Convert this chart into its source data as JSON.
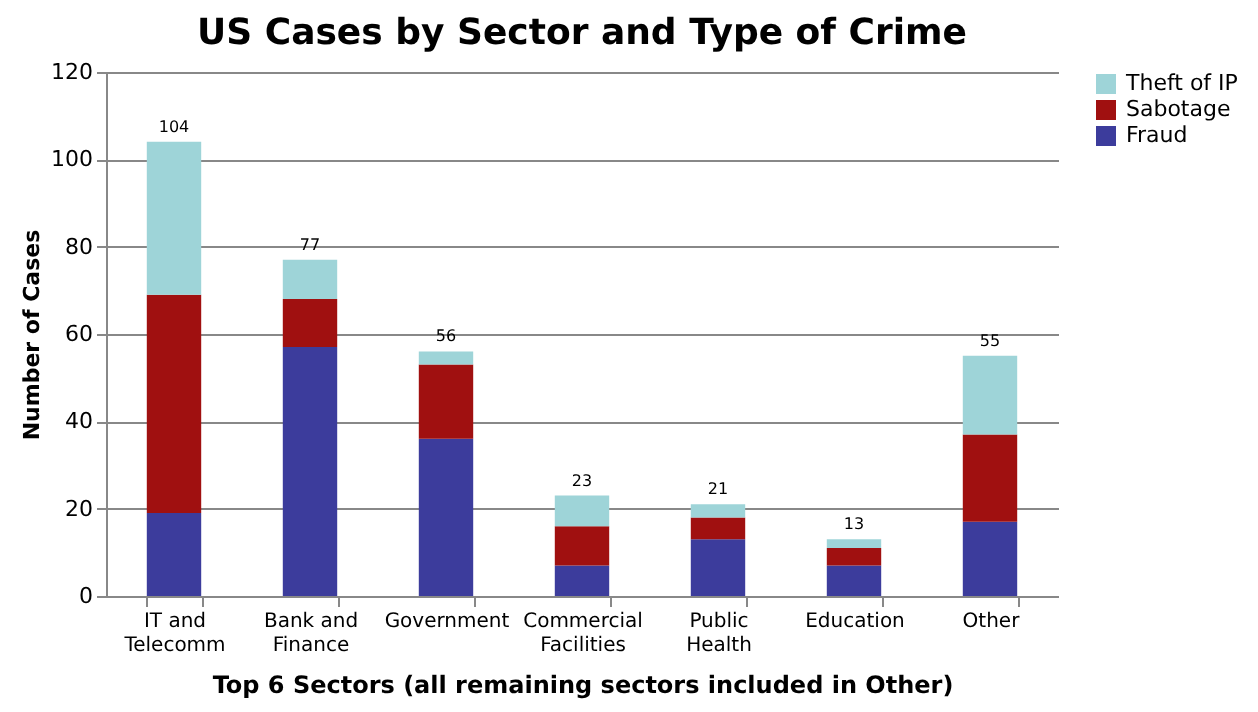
{
  "chart_data": {
    "type": "bar",
    "title": "US Cases by Sector and Type of Crime",
    "xlabel": "Top 6 Sectors (all remaining sectors included in Other)",
    "ylabel": "Number of Cases",
    "categories": [
      "IT and Telecomm",
      "Bank and Finance",
      "Government",
      "Commercial Facilities",
      "Public Health",
      "Education",
      "Other"
    ],
    "stacked": true,
    "series": [
      {
        "name": "Fraud",
        "color": "#3c3c9c",
        "values": [
          19,
          57,
          36,
          7,
          13,
          7,
          17
        ]
      },
      {
        "name": "Sabotage",
        "color": "#a01010",
        "values": [
          50,
          11,
          17,
          9,
          5,
          4,
          20
        ]
      },
      {
        "name": "Theft of IP",
        "color": "#9ed4d8",
        "values": [
          35,
          9,
          3,
          7,
          3,
          2,
          18
        ]
      }
    ],
    "totals": [
      "104",
      "77",
      "56",
      "23",
      "21",
      "13",
      "55"
    ],
    "ylim": [
      0,
      120
    ],
    "yticks": [
      0,
      20,
      40,
      60,
      80,
      100,
      120
    ],
    "grid": "y",
    "legend": "right"
  }
}
